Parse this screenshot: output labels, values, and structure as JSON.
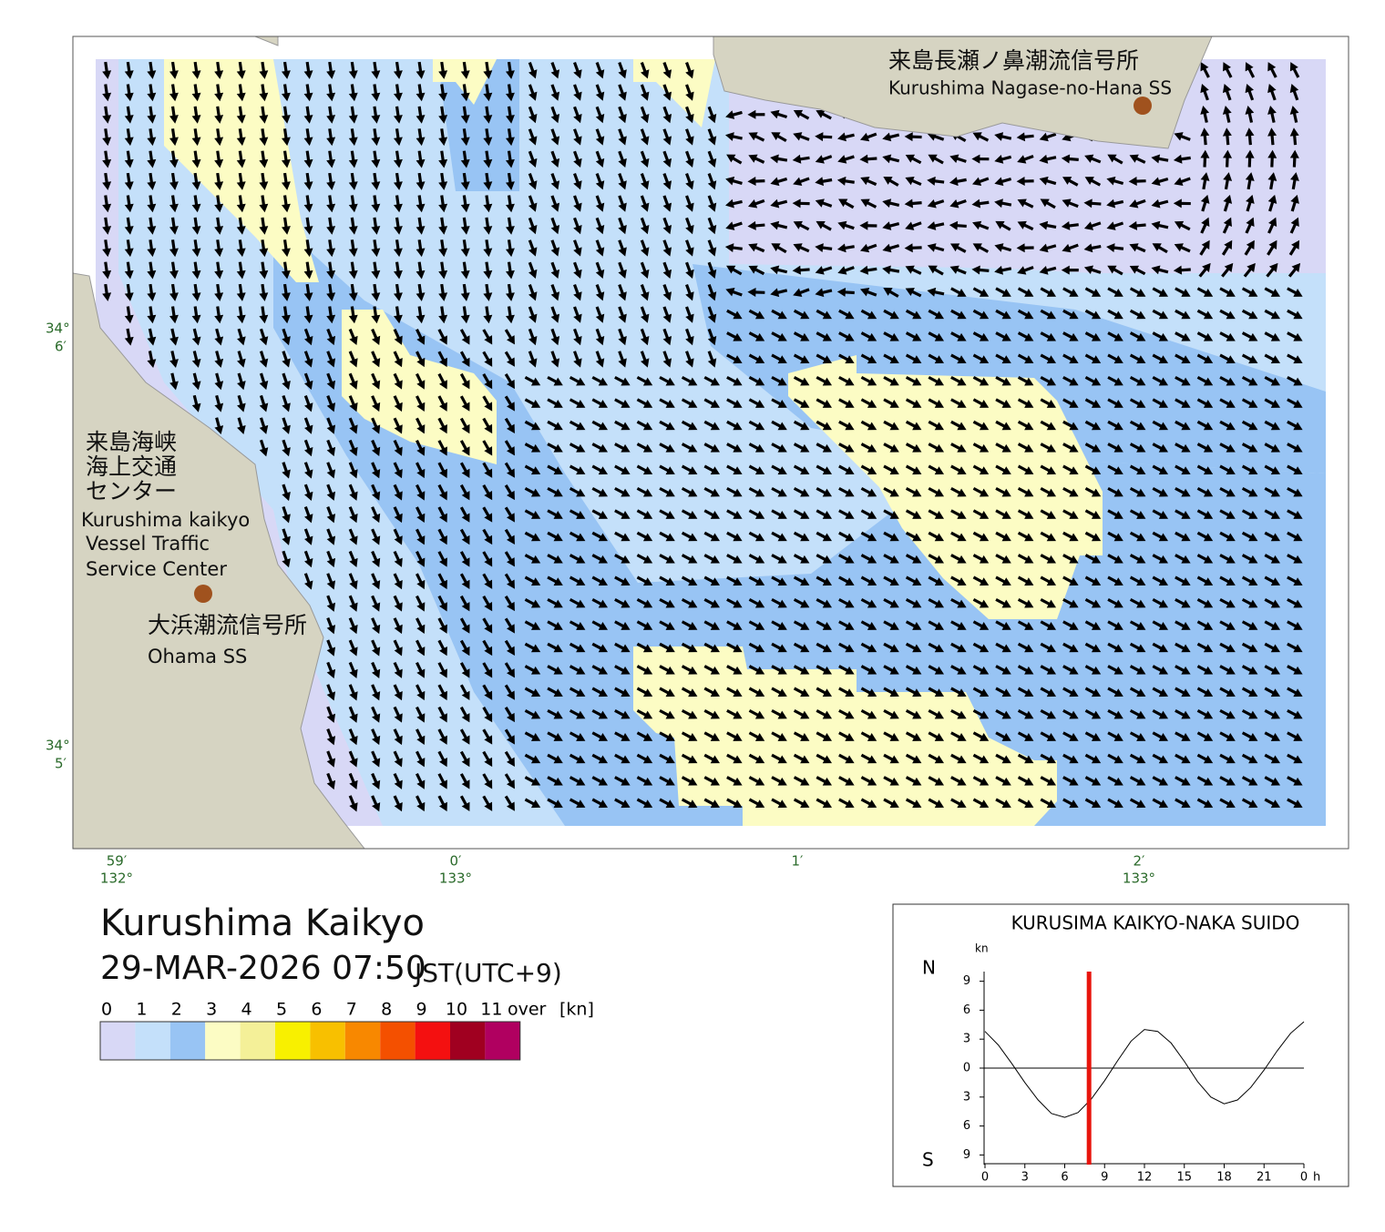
{
  "map": {
    "station_top": {
      "name_ja": "来島長瀬ノ鼻潮流信号所",
      "name_en": "Kurushima Nagase-no-Hana SS"
    },
    "vts": {
      "name_ja": [
        "来島海峡",
        "海上交通",
        "センター"
      ],
      "name_en": [
        "Kurushima kaikyo",
        "Vessel Traffic",
        "Service Center"
      ]
    },
    "station_left": {
      "name_ja": "大浜潮流信号所",
      "name_en": "Ohama SS"
    },
    "lat_labels": [
      {
        "degree": "34°",
        "minute": "6′"
      },
      {
        "degree": "34°",
        "minute": "5′"
      }
    ],
    "lon_labels": [
      {
        "minute": "59′",
        "degree": "132°"
      },
      {
        "minute": "0′",
        "degree": "133°"
      },
      {
        "minute": "1′"
      },
      {
        "minute": "2′",
        "degree": "133°"
      }
    ]
  },
  "header": {
    "title": "Kurushima Kaikyo",
    "datetime": "29-MAR-2026 07:50",
    "timezone": "JST(UTC+9)"
  },
  "legend": {
    "labels": [
      "0",
      "1",
      "2",
      "3",
      "4",
      "5",
      "6",
      "7",
      "8",
      "9",
      "10",
      "11"
    ],
    "over": "over",
    "unit": "[kn]",
    "colors": [
      "#d8d8f6",
      "#c4e0fa",
      "#98c4f4",
      "#fcfcc4",
      "#f4f098",
      "#f8f000",
      "#f8c000",
      "#f88800",
      "#f45000",
      "#f41010",
      "#a00020",
      "#b00060"
    ]
  },
  "chart_data": {
    "type": "line",
    "title": "KURUSIMA KAIKYO-NAKA SUIDO",
    "y_unit": "kn",
    "x_unit": "h",
    "north": "N",
    "south": "S",
    "x": [
      0,
      1,
      2,
      3,
      4,
      5,
      6,
      7,
      8,
      9,
      10,
      11,
      12,
      13,
      14,
      15,
      16,
      17,
      18,
      19,
      20,
      21,
      22,
      23,
      24
    ],
    "series": [
      {
        "name": "NAKA SUIDO",
        "color": "#000000",
        "values": [
          3.8,
          2.4,
          0.5,
          -1.5,
          -3.3,
          -4.7,
          -5.1,
          -4.6,
          -3.2,
          -1.3,
          0.8,
          2.8,
          4.0,
          3.8,
          2.6,
          0.7,
          -1.4,
          -3.0,
          -3.7,
          -3.3,
          -2.0,
          -0.2,
          1.8,
          3.6,
          4.8
        ]
      }
    ],
    "current_time": 7.83,
    "current_color": "#e8140c",
    "xlim": [
      0,
      24
    ],
    "ylim": [
      -10,
      10
    ],
    "xticks": [
      0,
      3,
      6,
      9,
      12,
      15,
      18,
      21,
      {
        "value": 24,
        "label": "0"
      }
    ],
    "yticks": [
      9,
      6,
      3,
      0,
      {
        "value": -3,
        "label": "3"
      },
      {
        "value": -6,
        "label": "6"
      },
      {
        "value": -9,
        "label": "9"
      }
    ]
  }
}
